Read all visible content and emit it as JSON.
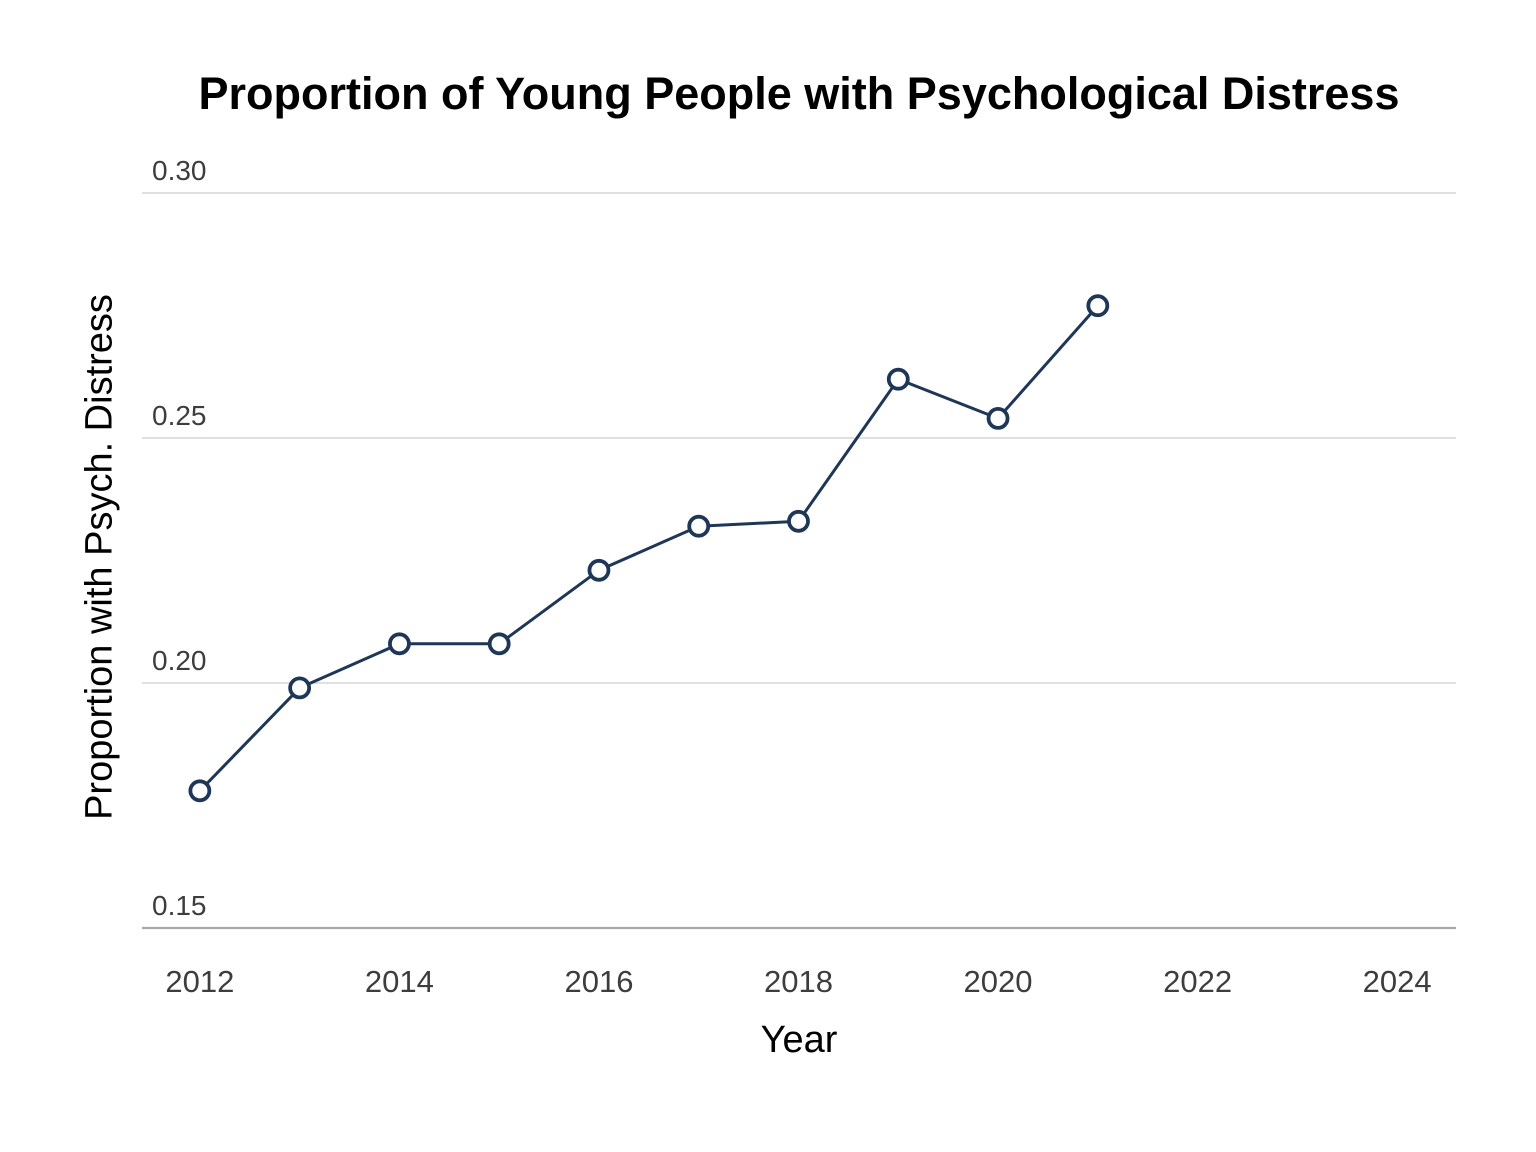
{
  "page": {
    "background_color": "#ffffff"
  },
  "chart_data": {
    "type": "line",
    "title": "Proportion of Young People with Psychological Distress",
    "xlabel": "Year",
    "ylabel": "Proportion with Psych. Distress",
    "x": [
      2012,
      2013,
      2014,
      2015,
      2016,
      2017,
      2018,
      2019,
      2020,
      2021
    ],
    "values": [
      0.178,
      0.199,
      0.208,
      0.208,
      0.223,
      0.232,
      0.233,
      0.262,
      0.254,
      0.277
    ],
    "xlim": [
      2011.42,
      2024.59
    ],
    "ylim": [
      0.15,
      0.3
    ],
    "xticks": {
      "values": [
        2012,
        2014,
        2016,
        2018,
        2020,
        2022,
        2024
      ],
      "labels": [
        "2012",
        "2014",
        "2016",
        "2018",
        "2020",
        "2022",
        "2024"
      ]
    },
    "yticks": {
      "values": [
        0.3,
        0.25,
        0.2,
        0.15
      ],
      "labels": [
        "0.30",
        "0.25",
        "0.20",
        "0.15"
      ]
    },
    "grid": "horizontal",
    "legend": "none",
    "marker": "open-circle",
    "colors": {
      "line": "#1e3756",
      "marker_stroke": "#1e3756",
      "marker_fill": "#ffffff",
      "gridline": "#d6d6d6",
      "axis_line": "#a9a9a9",
      "tick_label": "#3d3d3d",
      "title": "#000000",
      "axis_label": "#000000"
    }
  }
}
